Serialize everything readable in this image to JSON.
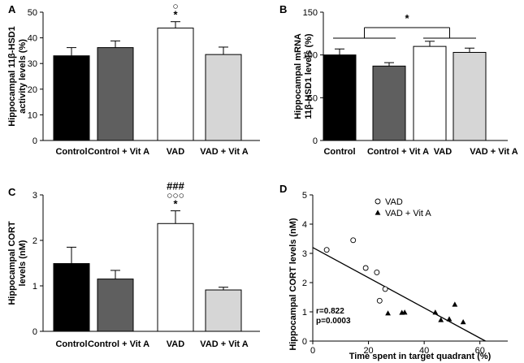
{
  "chart_data": [
    {
      "panel": "A",
      "type": "bar",
      "ylabel": "Hippocampal 11β-HSD1 activity levels (%)",
      "ylabel_lines": [
        "Hippocampal 11β-HSD1",
        "activity levels (%)"
      ],
      "ylim": [
        0,
        50
      ],
      "yticks": [
        0,
        10,
        20,
        30,
        40,
        50
      ],
      "categories": [
        "Control",
        "Control + Vit A",
        "VAD",
        "VAD + Vit A"
      ],
      "values": [
        33,
        36.2,
        43.8,
        33.5
      ],
      "errors": [
        3.2,
        2.6,
        2.5,
        2.9
      ],
      "colors": [
        "#000000",
        "#5f5f5f",
        "#ffffff",
        "#d6d6d6"
      ],
      "annotations": [
        {
          "category": "VAD",
          "lines": [
            "○",
            "*"
          ]
        }
      ]
    },
    {
      "panel": "B",
      "type": "bar",
      "ylabel": "Hippocampal mRNA 11β-HSD1 levels (%)",
      "ylabel_lines": [
        "Hippocampal mRNA",
        "11β-HSD1 levels (%)"
      ],
      "ylim": [
        0,
        150
      ],
      "yticks": [
        0,
        50,
        100,
        150
      ],
      "categories": [
        "Control",
        "Control + Vit A",
        "VAD",
        "VAD + Vit A"
      ],
      "values": [
        100,
        87,
        110,
        103
      ],
      "errors": [
        7,
        4,
        6,
        5
      ],
      "colors": [
        "#000000",
        "#5f5f5f",
        "#ffffff",
        "#d6d6d6"
      ],
      "bracket_label": "*"
    },
    {
      "panel": "C",
      "type": "bar",
      "ylabel": "Hippocampal CORT levels (nM)",
      "ylabel_lines": [
        "Hippocampal CORT",
        "levels (nM)"
      ],
      "ylim": [
        0,
        3
      ],
      "yticks": [
        0,
        1,
        2,
        3
      ],
      "categories": [
        "Control",
        "Control + Vit A",
        "VAD",
        "VAD + Vit A"
      ],
      "values": [
        1.49,
        1.15,
        2.37,
        0.91
      ],
      "errors": [
        0.36,
        0.19,
        0.28,
        0.06
      ],
      "colors": [
        "#000000",
        "#5f5f5f",
        "#ffffff",
        "#d6d6d6"
      ],
      "annotations": [
        {
          "category": "VAD",
          "lines": [
            "###",
            "○○○",
            "*"
          ]
        }
      ]
    },
    {
      "panel": "D",
      "type": "scatter",
      "xlabel": "Time spent in target quadrant (%)",
      "ylabel": "Hippocampal CORT levels (nM)",
      "xlim": [
        0,
        70
      ],
      "ylim": [
        0,
        5
      ],
      "xticks": [
        0,
        20,
        40,
        60
      ],
      "yticks": [
        0,
        1,
        2,
        3,
        4,
        5
      ],
      "series": [
        {
          "name": "VAD",
          "marker": "open-circle",
          "x": [
            5,
            14.5,
            19,
            23,
            24,
            26
          ],
          "y": [
            3.12,
            3.45,
            2.5,
            2.35,
            1.38,
            1.78
          ]
        },
        {
          "name": "VAD + Vit A",
          "marker": "filled-triangle",
          "x": [
            27,
            32,
            33,
            44,
            46,
            49,
            51,
            54
          ],
          "y": [
            0.95,
            0.97,
            0.98,
            0.98,
            0.72,
            0.75,
            1.25,
            0.65
          ]
        }
      ],
      "fit_line": {
        "x": [
          0,
          62
        ],
        "y": [
          3.2,
          0
        ]
      },
      "stats": [
        "r=0.822",
        "p=0.0003"
      ]
    }
  ]
}
